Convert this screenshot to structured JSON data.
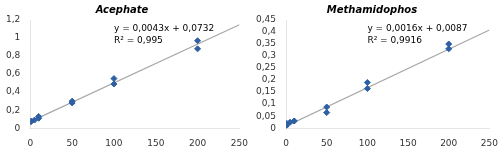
{
  "chart_data": [
    {
      "type": "scatter",
      "title": "Acephate",
      "annotations": [
        "y = 0,0043x + 0,0732",
        "R² = 0,995"
      ],
      "series": [
        {
          "type": "scatter",
          "color": "#2E5FA3",
          "marker": "diamond",
          "x": [
            0.5,
            1,
            5,
            10,
            10,
            50,
            50,
            100,
            100,
            200,
            200
          ],
          "values": [
            0.07,
            0.08,
            0.09,
            0.11,
            0.13,
            0.28,
            0.3,
            0.49,
            0.55,
            0.88,
            0.97
          ]
        },
        {
          "type": "line",
          "color": "#A8A8A8",
          "line_style": "solid",
          "x": [
            0,
            250
          ],
          "values": [
            0.0732,
            1.1482
          ]
        }
      ],
      "xlim": [
        0,
        250
      ],
      "xticks": [
        0,
        50,
        100,
        150,
        200,
        250
      ],
      "ylim": [
        0,
        1.2
      ],
      "yticks": [
        0,
        {
          "value": 0.2,
          "label": "0,2"
        },
        {
          "value": 0.4,
          "label": "0,4"
        },
        {
          "value": 0.6,
          "label": "0,6"
        },
        {
          "value": 0.8,
          "label": "0,8"
        },
        1,
        {
          "value": 1.2,
          "label": "1,2"
        }
      ],
      "grid": false
    },
    {
      "type": "scatter",
      "title": "Methamidophos",
      "annotations": [
        "y = 0,0016x + 0,0087",
        "R² = 0,9916"
      ],
      "series": [
        {
          "type": "scatter",
          "color": "#2E5FA3",
          "marker": "diamond",
          "x": [
            0.5,
            1,
            5,
            10,
            10,
            50,
            50,
            100,
            100,
            200,
            200
          ],
          "values": [
            0.01,
            0.02,
            0.025,
            0.03,
            0.03,
            0.065,
            0.088,
            0.165,
            0.19,
            0.33,
            0.35
          ]
        },
        {
          "type": "line",
          "color": "#A8A8A8",
          "line_style": "solid",
          "x": [
            0,
            250
          ],
          "values": [
            0.0087,
            0.4087
          ]
        }
      ],
      "xlim": [
        0,
        250
      ],
      "xticks": [
        0,
        50,
        100,
        150,
        200,
        250
      ],
      "ylim": [
        0,
        0.45
      ],
      "yticks": [
        0,
        {
          "value": 0.05,
          "label": "0,05"
        },
        {
          "value": 0.1,
          "label": "0,1"
        },
        {
          "value": 0.15,
          "label": "0,15"
        },
        {
          "value": 0.2,
          "label": "0,2"
        },
        {
          "value": 0.25,
          "label": "0,25"
        },
        {
          "value": 0.3,
          "label": "0,3"
        },
        {
          "value": 0.35,
          "label": "0,35"
        },
        {
          "value": 0.4,
          "label": "0,4"
        },
        {
          "value": 0.45,
          "label": "0,45"
        }
      ],
      "grid": false
    }
  ]
}
